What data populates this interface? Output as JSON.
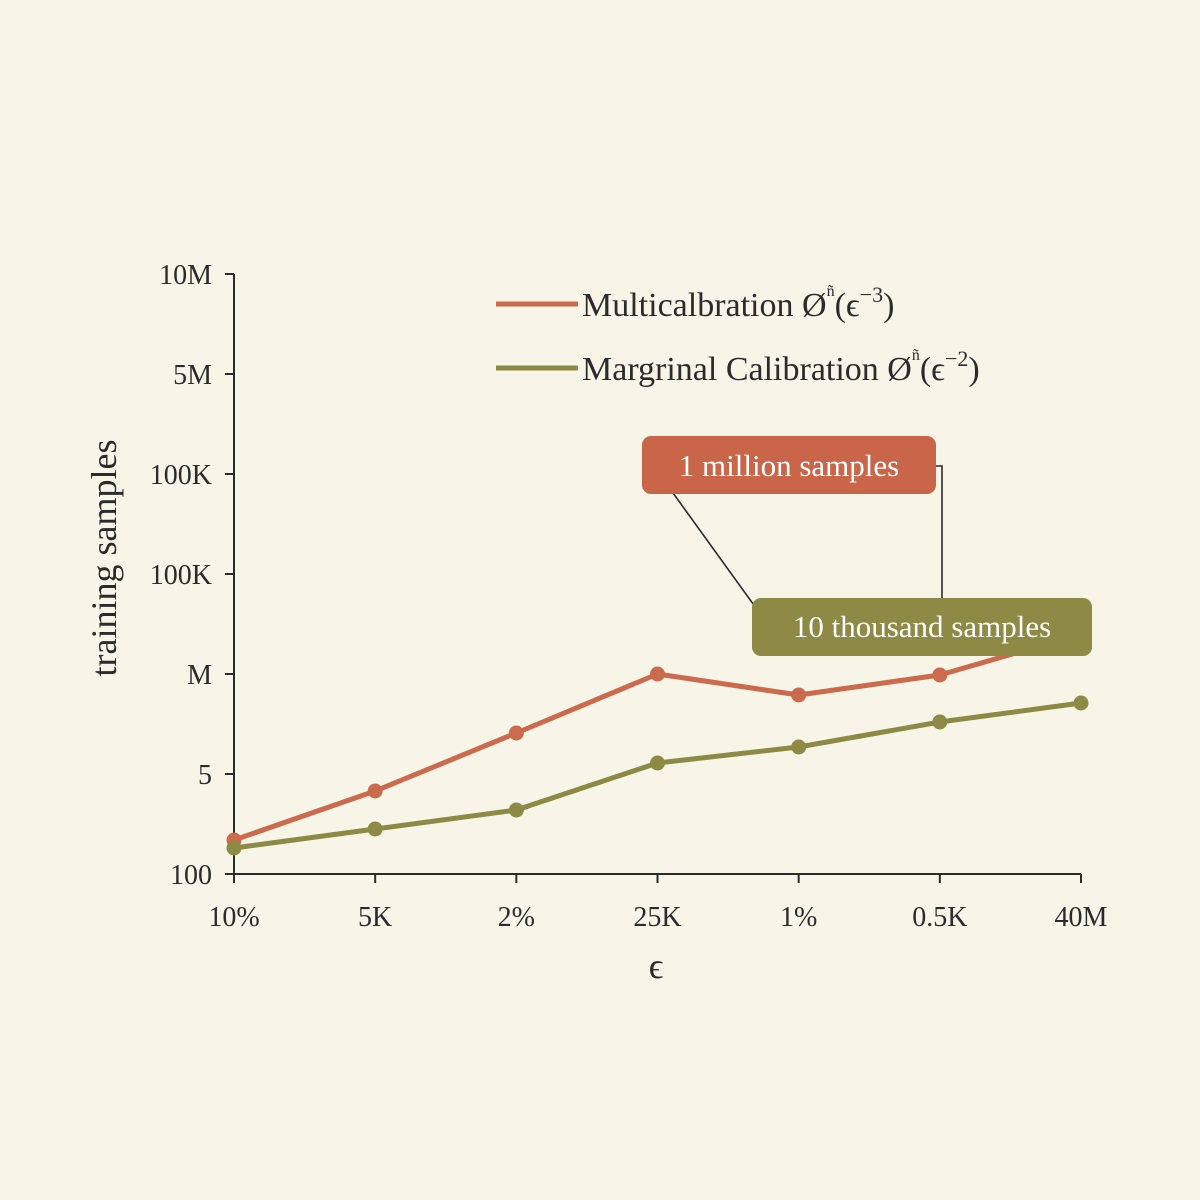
{
  "chart_data": {
    "type": "line",
    "xlabel": "ϵ",
    "ylabel": "training samples",
    "categories": [
      "10%",
      "5K",
      "2%",
      "25K",
      "1%",
      "0.5K",
      "40M"
    ],
    "y_ticks": [
      "100",
      "5",
      "M",
      "100K",
      "100K",
      "5M",
      "10M"
    ],
    "grid": false,
    "legend_position": "top-right",
    "series": [
      {
        "name": "Multicalbration Ø̃ⁿ(ϵ⁻³)",
        "name_main": "Multicalbration Ø",
        "name_sup_mark": "ñ",
        "name_open": "(ϵ",
        "name_exp": "−3",
        "name_close": ")",
        "color": "#cc6a4d",
        "values": [
          0.34,
          0.83,
          1.41,
          2.0,
          1.79,
          1.99,
          2.4
        ]
      },
      {
        "name": "Margrinal Calibration Ø̃ⁿ(ϵ⁻²)",
        "name_main": "Margrinal Calibration Ø",
        "name_sup_mark": "ñ",
        "name_open": "(ϵ",
        "name_exp": "−2",
        "name_close": ")",
        "color": "#8c8a45",
        "values": [
          0.26,
          0.45,
          0.64,
          1.11,
          1.27,
          1.52,
          1.71
        ]
      }
    ],
    "annotations": [
      {
        "text": "1 million samples",
        "color": "#c9664a"
      },
      {
        "text": "10 thousand samples",
        "color": "#8c8a45"
      }
    ]
  }
}
